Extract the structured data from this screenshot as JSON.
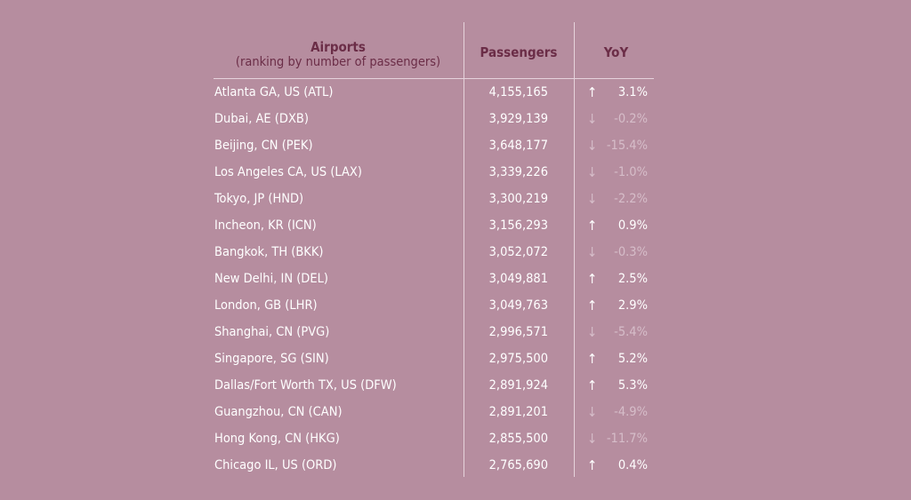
{
  "header": {
    "airports": "Airports",
    "airports_sub": "(ranking by number of passengers)",
    "passengers": "Passengers",
    "yoy": "YoY"
  },
  "colors": {
    "background": "#b68d9f",
    "header_text": "#6b2d47",
    "positive": "#ffffff",
    "negative": "#d6bdc9"
  },
  "rows": [
    {
      "airport": "Atlanta GA, US (ATL)",
      "passengers": "4,155,165",
      "arrow": "↑",
      "yoy": "3.1%",
      "trend": "up"
    },
    {
      "airport": "Dubai, AE (DXB)",
      "passengers": "3,929,139",
      "arrow": "↓",
      "yoy": "-0.2%",
      "trend": "down"
    },
    {
      "airport": "Beijing, CN (PEK)",
      "passengers": "3,648,177",
      "arrow": "↓",
      "yoy": "-15.4%",
      "trend": "down"
    },
    {
      "airport": "Los Angeles CA, US (LAX)",
      "passengers": "3,339,226",
      "arrow": "↓",
      "yoy": "-1.0%",
      "trend": "down"
    },
    {
      "airport": "Tokyo, JP (HND)",
      "passengers": "3,300,219",
      "arrow": "↓",
      "yoy": "-2.2%",
      "trend": "down"
    },
    {
      "airport": "Incheon, KR (ICN)",
      "passengers": "3,156,293",
      "arrow": "↑",
      "yoy": "0.9%",
      "trend": "up"
    },
    {
      "airport": "Bangkok, TH (BKK)",
      "passengers": "3,052,072",
      "arrow": "↓",
      "yoy": "-0.3%",
      "trend": "down"
    },
    {
      "airport": "New Delhi, IN (DEL)",
      "passengers": "3,049,881",
      "arrow": "↑",
      "yoy": "2.5%",
      "trend": "up"
    },
    {
      "airport": "London, GB (LHR)",
      "passengers": "3,049,763",
      "arrow": "↑",
      "yoy": "2.9%",
      "trend": "up"
    },
    {
      "airport": "Shanghai, CN (PVG)",
      "passengers": "2,996,571",
      "arrow": "↓",
      "yoy": "-5.4%",
      "trend": "down"
    },
    {
      "airport": "Singapore, SG (SIN)",
      "passengers": "2,975,500",
      "arrow": "↑",
      "yoy": "5.2%",
      "trend": "up"
    },
    {
      "airport": "Dallas/Fort Worth TX, US (DFW)",
      "passengers": "2,891,924",
      "arrow": "↑",
      "yoy": "5.3%",
      "trend": "up"
    },
    {
      "airport": "Guangzhou, CN (CAN)",
      "passengers": "2,891,201",
      "arrow": "↓",
      "yoy": "-4.9%",
      "trend": "down"
    },
    {
      "airport": "Hong Kong, CN (HKG)",
      "passengers": "2,855,500",
      "arrow": "↓",
      "yoy": "-11.7%",
      "trend": "down"
    },
    {
      "airport": "Chicago IL, US (ORD)",
      "passengers": "2,765,690",
      "arrow": "↑",
      "yoy": "0.4%",
      "trend": "up"
    }
  ]
}
